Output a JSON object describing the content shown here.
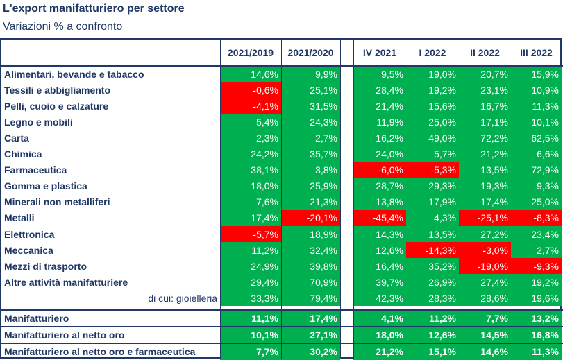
{
  "title": "L'export manifatturiero per settore",
  "subtitle": "Variazioni % a confronto",
  "colors": {
    "positive": "#00b050",
    "negative": "#ff0000",
    "text": "#1f3864"
  },
  "columns": [
    "2021/2019",
    "2021/2020",
    "IV 2021",
    "I 2022",
    "II 2022",
    "III 2022"
  ],
  "rows": [
    {
      "label": "Alimentari, bevande e tabacco",
      "values": [
        "14,6%",
        "9,9%",
        "9,5%",
        "19,0%",
        "20,7%",
        "15,9%"
      ]
    },
    {
      "label": "Tessili e abbigliamento",
      "values": [
        "-0,6%",
        "25,1%",
        "28,4%",
        "19,2%",
        "23,1%",
        "10,9%"
      ]
    },
    {
      "label": "Pelli, cuoio e calzature",
      "values": [
        "-4,1%",
        "31,5%",
        "21,4%",
        "15,6%",
        "16,7%",
        "11,3%"
      ]
    },
    {
      "label": "Legno e mobili",
      "values": [
        "5,4%",
        "24,3%",
        "11,9%",
        "25,0%",
        "17,1%",
        "10,1%"
      ]
    },
    {
      "label": "Carta",
      "values": [
        "2,3%",
        "2,7%",
        "16,2%",
        "49,0%",
        "72,2%",
        "62,5%"
      ]
    },
    {
      "label": "Chimica",
      "values": [
        "24,2%",
        "35,7%",
        "24,0%",
        "5,7%",
        "21,2%",
        "6,6%"
      ]
    },
    {
      "label": "Farmaceutica",
      "values": [
        "38,1%",
        "3,8%",
        "-6,0%",
        "-5,3%",
        "13,5%",
        "72,9%"
      ]
    },
    {
      "label": "Gomma e plastica",
      "values": [
        "18,0%",
        "25,9%",
        "28,7%",
        "29,3%",
        "19,3%",
        "9,3%"
      ]
    },
    {
      "label": "Minerali non metalliferi",
      "values": [
        "7,6%",
        "21,3%",
        "13,8%",
        "17,9%",
        "17,4%",
        "25,0%"
      ]
    },
    {
      "label": "Metalli",
      "values": [
        "17,4%",
        "-20,1%",
        "-45,4%",
        "4,3%",
        "-25,1%",
        "-8,3%"
      ]
    },
    {
      "label": "Elettronica",
      "values": [
        "-5,7%",
        "18,9%",
        "14,3%",
        "13,5%",
        "27,2%",
        "23,4%"
      ]
    },
    {
      "label": "Meccanica",
      "values": [
        "11,2%",
        "32,4%",
        "12,6%",
        "-14,3%",
        "-3,0%",
        "2,7%"
      ]
    },
    {
      "label": "Mezzi di trasporto",
      "values": [
        "24,9%",
        "39,8%",
        "16,4%",
        "35,2%",
        "-19,0%",
        "-9,3%"
      ]
    },
    {
      "label": "Altre attività manifatturiere",
      "values": [
        "29,4%",
        "70,9%",
        "39,7%",
        "26,9%",
        "27,4%",
        "19,2%"
      ]
    },
    {
      "label": "di cui: gioielleria",
      "values": [
        "33,3%",
        "79,4%",
        "42,3%",
        "28,3%",
        "28,6%",
        "19,6%"
      ],
      "sub": true
    }
  ],
  "summary_rows": [
    {
      "label": "Manifatturiero",
      "values": [
        "11,1%",
        "17,4%",
        "4,1%",
        "11,2%",
        "7,7%",
        "13,2%"
      ]
    },
    {
      "label": "Manifatturiero al netto oro",
      "values": [
        "10,1%",
        "27,1%",
        "18,0%",
        "12,6%",
        "14,5%",
        "16,8%"
      ]
    },
    {
      "label": "Manifatturiero al netto oro e farmaceutica",
      "values": [
        "7,7%",
        "30,2%",
        "21,2%",
        "15,1%",
        "14,6%",
        "11,3%"
      ]
    }
  ]
}
